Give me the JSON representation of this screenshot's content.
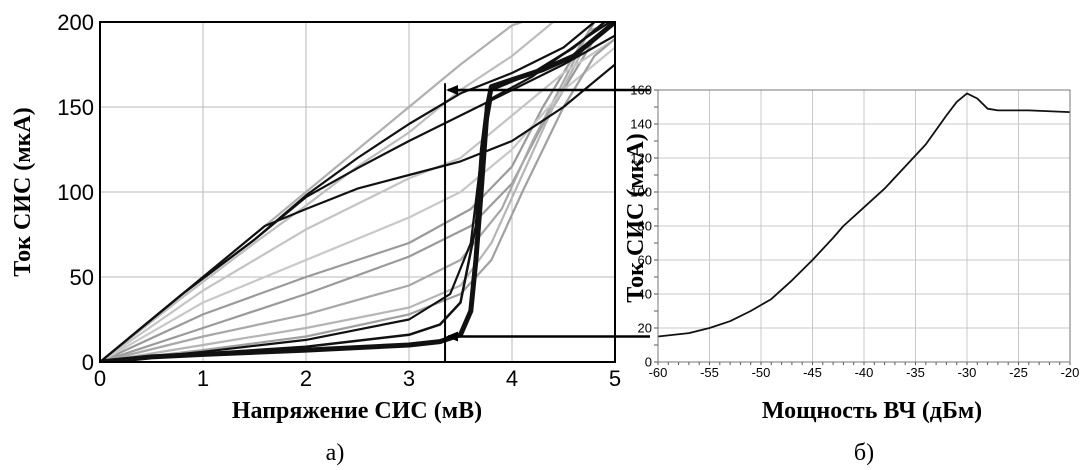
{
  "chart_data": [
    {
      "type": "line",
      "panel": "а)",
      "xlabel": "Напряжение СИС (мВ)",
      "ylabel": "Ток СИС (мкА)",
      "xlim": [
        0,
        5
      ],
      "ylim": [
        0,
        200
      ],
      "x_ticks": [
        "0",
        "1",
        "2",
        "3",
        "4",
        "5"
      ],
      "y_ticks": [
        "0",
        "50",
        "100",
        "150",
        "200"
      ],
      "grid": true,
      "vertical_marker_x": 3.35,
      "series": [
        {
          "color": "#111111",
          "width": 5,
          "points": [
            [
              0,
              0
            ],
            [
              0.5,
              3
            ],
            [
              1,
              4.5
            ],
            [
              2,
              7
            ],
            [
              3,
              10
            ],
            [
              3.3,
              12
            ],
            [
              3.5,
              16
            ],
            [
              3.6,
              30
            ],
            [
              3.65,
              60
            ],
            [
              3.7,
              100
            ],
            [
              3.73,
              125
            ],
            [
              3.76,
              150
            ],
            [
              3.8,
              162
            ],
            [
              4,
              166
            ],
            [
              4.3,
              172
            ],
            [
              4.6,
              180
            ],
            [
              4.9,
              195
            ],
            [
              5,
              200
            ]
          ]
        },
        {
          "color": "#111111",
          "width": 2.5,
          "points": [
            [
              0,
              0
            ],
            [
              1,
              5
            ],
            [
              2,
              9
            ],
            [
              3,
              16
            ],
            [
              3.3,
              22
            ],
            [
              3.5,
              35
            ],
            [
              3.65,
              80
            ],
            [
              3.7,
              125
            ],
            [
              3.75,
              150
            ],
            [
              3.8,
              160
            ],
            [
              4.2,
              170
            ],
            [
              4.6,
              185
            ],
            [
              4.9,
              200
            ]
          ]
        },
        {
          "color": "#111111",
          "width": 2.2,
          "points": [
            [
              0,
              0
            ],
            [
              1,
              6
            ],
            [
              2,
              13
            ],
            [
              3,
              25
            ],
            [
              3.4,
              40
            ],
            [
              3.6,
              70
            ],
            [
              3.7,
              120
            ],
            [
              3.8,
              155
            ],
            [
              4.2,
              168
            ],
            [
              4.7,
              190
            ],
            [
              4.95,
              200
            ]
          ]
        },
        {
          "color": "#111111",
          "width": 2.2,
          "points": [
            [
              0,
              0
            ],
            [
              0.8,
              40
            ],
            [
              1.6,
              80
            ],
            [
              2,
              90
            ],
            [
              2.5,
              102
            ],
            [
              3,
              110
            ],
            [
              3.5,
              118
            ],
            [
              4,
              130
            ],
            [
              4.5,
              150
            ],
            [
              5,
              175
            ]
          ]
        },
        {
          "color": "#111111",
          "width": 2.2,
          "points": [
            [
              0,
              0
            ],
            [
              0.8,
              40
            ],
            [
              1.5,
              72
            ],
            [
              2,
              97
            ],
            [
              2.5,
              114
            ],
            [
              3,
              130
            ],
            [
              3.5,
              145
            ],
            [
              4,
              160
            ],
            [
              4.5,
              175
            ],
            [
              5,
              192
            ]
          ]
        },
        {
          "color": "#111111",
          "width": 2.2,
          "points": [
            [
              0,
              0
            ],
            [
              0.8,
              40
            ],
            [
              1.5,
              72
            ],
            [
              2,
              98
            ],
            [
              2.5,
              120
            ],
            [
              3,
              140
            ],
            [
              3.5,
              158
            ],
            [
              4,
              170
            ],
            [
              4.5,
              185
            ],
            [
              4.8,
              200
            ]
          ]
        },
        {
          "color": "#9a9a9a",
          "width": 2.2,
          "points": [
            [
              0,
              0
            ],
            [
              1,
              20
            ],
            [
              2,
              40
            ],
            [
              3,
              62
            ],
            [
              3.6,
              80
            ],
            [
              4,
              105
            ],
            [
              4.3,
              140
            ],
            [
              4.6,
              170
            ],
            [
              4.8,
              190
            ],
            [
              5,
              200
            ]
          ]
        },
        {
          "color": "#9a9a9a",
          "width": 2.2,
          "points": [
            [
              0,
              0
            ],
            [
              1,
              28
            ],
            [
              2,
              50
            ],
            [
              3,
              70
            ],
            [
              3.6,
              90
            ],
            [
              4,
              115
            ],
            [
              4.3,
              150
            ],
            [
              4.6,
              180
            ],
            [
              4.8,
              200
            ]
          ]
        },
        {
          "color": "#a8a8a8",
          "width": 2.2,
          "points": [
            [
              0,
              0
            ],
            [
              1,
              15
            ],
            [
              2,
              28
            ],
            [
              3,
              45
            ],
            [
              3.5,
              60
            ],
            [
              3.9,
              90
            ],
            [
              4.2,
              130
            ],
            [
              4.5,
              165
            ],
            [
              4.75,
              195
            ],
            [
              5,
              200
            ]
          ]
        },
        {
          "color": "#b5b5b5",
          "width": 2.2,
          "points": [
            [
              0,
              0
            ],
            [
              1,
              10
            ],
            [
              2,
              20
            ],
            [
              3,
              32
            ],
            [
              3.5,
              45
            ],
            [
              3.8,
              70
            ],
            [
              4.1,
              110
            ],
            [
              4.4,
              150
            ],
            [
              4.7,
              185
            ],
            [
              5,
              200
            ]
          ]
        },
        {
          "color": "#bdbdbd",
          "width": 2.2,
          "points": [
            [
              0,
              0
            ],
            [
              0.8,
              38
            ],
            [
              1.5,
              70
            ],
            [
              2,
              92
            ],
            [
              2.5,
              115
            ],
            [
              3,
              135
            ],
            [
              3.5,
              160
            ],
            [
              4,
              180
            ],
            [
              4.4,
              200
            ]
          ]
        },
        {
          "color": "#b0b0b0",
          "width": 2.2,
          "points": [
            [
              0,
              0
            ],
            [
              0.8,
              40
            ],
            [
              1.5,
              75
            ],
            [
              2,
              100
            ],
            [
              2.5,
              125
            ],
            [
              3,
              150
            ],
            [
              3.5,
              175
            ],
            [
              4,
              198
            ],
            [
              4.1,
              200
            ]
          ]
        },
        {
          "color": "#c4c4c4",
          "width": 2.2,
          "points": [
            [
              0,
              0
            ],
            [
              1,
              42
            ],
            [
              2,
              78
            ],
            [
              3,
              108
            ],
            [
              3.5,
              120
            ],
            [
              4,
              145
            ],
            [
              4.5,
              170
            ],
            [
              5,
              190
            ]
          ]
        },
        {
          "color": "#c8c8c8",
          "width": 2.2,
          "points": [
            [
              0,
              0
            ],
            [
              1,
              35
            ],
            [
              2,
              60
            ],
            [
              3,
              85
            ],
            [
              3.5,
              100
            ],
            [
              4,
              125
            ],
            [
              4.5,
              160
            ],
            [
              5,
              185
            ]
          ]
        },
        {
          "color": "#a0a0a0",
          "width": 2.2,
          "points": [
            [
              0,
              0
            ],
            [
              1,
              7
            ],
            [
              2,
              15
            ],
            [
              3,
              28
            ],
            [
              3.5,
              40
            ],
            [
              3.8,
              60
            ],
            [
              4.1,
              100
            ],
            [
              4.5,
              150
            ],
            [
              4.8,
              180
            ],
            [
              5,
              190
            ]
          ]
        }
      ]
    },
    {
      "type": "line",
      "panel": "б)",
      "xlabel": "Мощность ВЧ (дБм)",
      "ylabel": "Ток СИС (мкА)",
      "xlim": [
        -60,
        -20
      ],
      "ylim": [
        0,
        160
      ],
      "x_ticks": [
        "-60",
        "-55",
        "-50",
        "-45",
        "-40",
        "-35",
        "-30",
        "-25",
        "-20"
      ],
      "y_ticks": [
        "0",
        "20",
        "40",
        "60",
        "80",
        "100",
        "120",
        "140",
        "160"
      ],
      "grid": true,
      "series": [
        {
          "color": "#111111",
          "width": 1.8,
          "points": [
            [
              -60,
              15
            ],
            [
              -57,
              17
            ],
            [
              -55,
              20
            ],
            [
              -53,
              24
            ],
            [
              -51,
              30
            ],
            [
              -49,
              37
            ],
            [
              -47,
              48
            ],
            [
              -45,
              60
            ],
            [
              -43,
              73
            ],
            [
              -42,
              80
            ],
            [
              -40,
              91
            ],
            [
              -38,
              102
            ],
            [
              -36,
              115
            ],
            [
              -34,
              128
            ],
            [
              -32,
              145
            ],
            [
              -31,
              153
            ],
            [
              -30,
              158
            ],
            [
              -29,
              155
            ],
            [
              -28,
              149
            ],
            [
              -27,
              148
            ],
            [
              -24,
              148
            ],
            [
              -20,
              147
            ]
          ]
        }
      ]
    }
  ],
  "arrows": [
    {
      "from": "б",
      "to": "а",
      "value_uA": 160
    },
    {
      "from": "б",
      "to": "а",
      "value_uA": 15
    }
  ]
}
